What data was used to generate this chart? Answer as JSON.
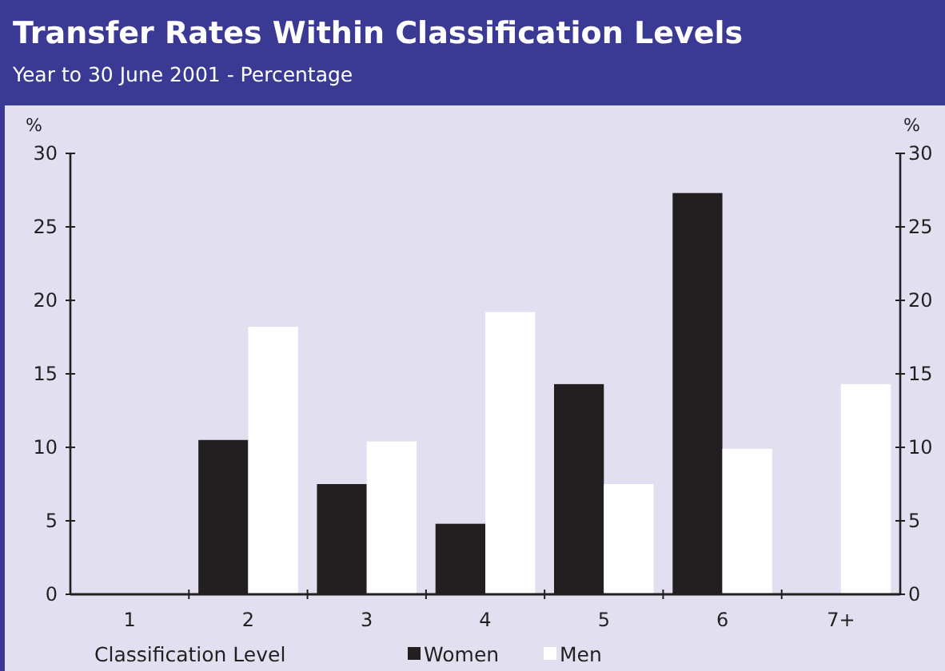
{
  "chart_data": {
    "type": "bar",
    "title": "Transfer Rates Within Classification Levels",
    "subtitle": "Year to 30 June 2001 - Percentage",
    "xlabel": "Classification Level",
    "ylabel": "%",
    "y2label": "%",
    "categories": [
      "1",
      "2",
      "3",
      "4",
      "5",
      "6",
      "7+"
    ],
    "series": [
      {
        "name": "Women",
        "color": "#231f20",
        "values": [
          0,
          10.5,
          7.5,
          4.8,
          14.3,
          27.3,
          0
        ]
      },
      {
        "name": "Men",
        "color": "#ffffff",
        "values": [
          0,
          18.2,
          10.4,
          19.2,
          7.5,
          9.9,
          14.3
        ]
      }
    ],
    "ylim": [
      0,
      30
    ],
    "yticks": [
      0,
      5,
      10,
      15,
      20,
      25,
      30
    ],
    "y2lim": [
      0,
      30
    ],
    "y2ticks": [
      0,
      5,
      10,
      15,
      20,
      25,
      30
    ],
    "grid": false,
    "legend": "bottom"
  }
}
